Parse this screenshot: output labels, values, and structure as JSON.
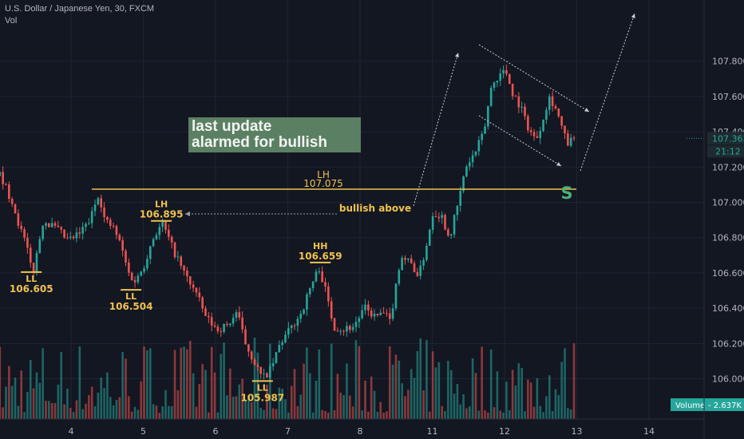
{
  "header": {
    "symbol_line": "U.S. Dollar / Japanese Yen, 30, FXCM",
    "volume_label": "Vol"
  },
  "note": {
    "line1": "last update",
    "line2": "alarmed for bullish"
  },
  "colors": {
    "background": "#131722",
    "grid": "#1f2433",
    "up": "#26a69a",
    "down": "#ef5350",
    "annotation": "#f0c24f",
    "note_bg": "#5b7f63",
    "signal": "#4caf72",
    "price_tag": "#26a69a",
    "axis_text": "#b2b5be"
  },
  "chart_data": {
    "type": "candlestick",
    "symbol": "U.S. Dollar / Japanese Yen",
    "timeframe": "30",
    "source": "FXCM",
    "x_ticks": [
      "4",
      "5",
      "6",
      "7",
      "8",
      "11",
      "12",
      "13",
      "14"
    ],
    "y_ticks": [
      "107.800",
      "107.600",
      "107.400",
      "107.200",
      "107.000",
      "106.800",
      "106.600",
      "106.400",
      "106.200",
      "106.000"
    ],
    "ylim": [
      105.93,
      107.93
    ],
    "current_price": "107.363",
    "countdown": "21:12",
    "volume_label": "Volume",
    "volume_value": "2.637K",
    "resistance_level": 107.075,
    "resistance_label": "LH",
    "resistance_value": "107.075",
    "signal_letter": "S",
    "bullish_label": "bullish above",
    "pivots": [
      {
        "name": "LL",
        "price": "106.605",
        "type": "low",
        "x": 3.45
      },
      {
        "name": "LL",
        "price": "106.504",
        "type": "low",
        "x": 4.83
      },
      {
        "name": "LH",
        "price": "106.895",
        "type": "high",
        "x": 5.25
      },
      {
        "name": "LL",
        "price": "105.987",
        "type": "low",
        "x": 6.65
      },
      {
        "name": "HH",
        "price": "106.659",
        "type": "high",
        "x": 7.45
      }
    ],
    "path_points": [
      [
        3.0,
        107.15
      ],
      [
        3.18,
        107.0
      ],
      [
        3.28,
        106.85
      ],
      [
        3.35,
        106.78
      ],
      [
        3.42,
        106.65
      ],
      [
        3.47,
        106.62
      ],
      [
        3.6,
        106.9
      ],
      [
        3.78,
        106.85
      ],
      [
        3.95,
        106.78
      ],
      [
        4.1,
        106.82
      ],
      [
        4.25,
        106.9
      ],
      [
        4.37,
        107.06
      ],
      [
        4.45,
        106.9
      ],
      [
        4.58,
        106.85
      ],
      [
        4.68,
        106.75
      ],
      [
        4.78,
        106.6
      ],
      [
        4.88,
        106.55
      ],
      [
        5.0,
        106.65
      ],
      [
        5.12,
        106.8
      ],
      [
        5.25,
        106.88
      ],
      [
        5.38,
        106.75
      ],
      [
        5.55,
        106.6
      ],
      [
        5.7,
        106.5
      ],
      [
        5.85,
        106.35
      ],
      [
        6.0,
        106.28
      ],
      [
        6.15,
        106.3
      ],
      [
        6.28,
        106.38
      ],
      [
        6.4,
        106.2
      ],
      [
        6.52,
        106.1
      ],
      [
        6.63,
        106.0
      ],
      [
        6.75,
        106.05
      ],
      [
        6.88,
        106.2
      ],
      [
        7.02,
        106.28
      ],
      [
        7.18,
        106.38
      ],
      [
        7.3,
        106.52
      ],
      [
        7.42,
        106.63
      ],
      [
        7.52,
        106.48
      ],
      [
        7.62,
        106.3
      ],
      [
        7.75,
        106.28
      ],
      [
        7.9,
        106.3
      ],
      [
        8.05,
        106.4
      ],
      [
        8.2,
        106.35
      ],
      [
        8.32,
        106.37
      ],
      [
        8.4,
        106.32
      ],
      [
        8.55,
        106.7
      ],
      [
        8.7,
        106.65
      ],
      [
        8.8,
        106.58
      ],
      [
        8.9,
        106.75
      ],
      [
        9.0,
        106.95
      ],
      [
        9.12,
        106.92
      ],
      [
        9.22,
        106.8
      ],
      [
        9.32,
        106.95
      ],
      [
        9.45,
        107.2
      ],
      [
        9.58,
        107.28
      ],
      [
        9.7,
        107.4
      ],
      [
        9.8,
        107.65
      ],
      [
        9.9,
        107.72
      ],
      [
        10.0,
        107.75
      ],
      [
        10.1,
        107.62
      ],
      [
        10.2,
        107.55
      ],
      [
        10.32,
        107.42
      ],
      [
        10.42,
        107.35
      ],
      [
        10.52,
        107.48
      ],
      [
        10.6,
        107.6
      ],
      [
        10.68,
        107.55
      ],
      [
        10.76,
        107.45
      ],
      [
        10.85,
        107.33
      ],
      [
        10.95,
        107.36
      ]
    ],
    "grid": true
  }
}
